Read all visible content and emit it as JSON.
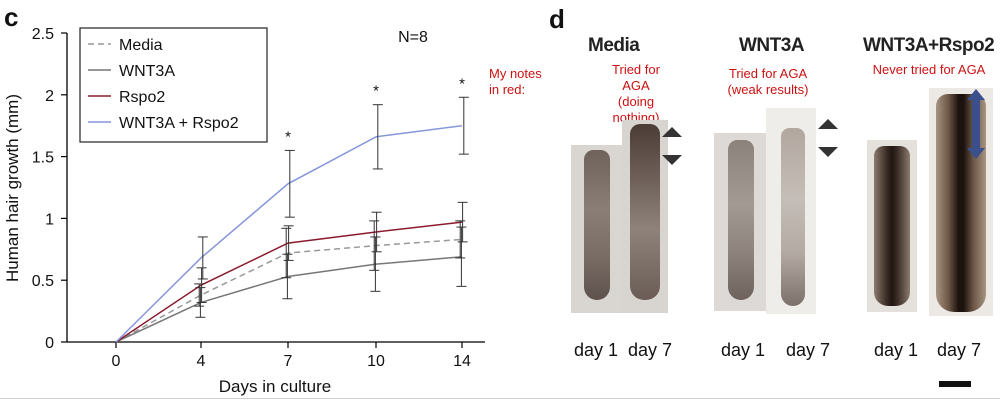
{
  "panel_c": {
    "letter": "c"
  },
  "panel_d": {
    "letter": "d"
  },
  "notes_label": [
    "My notes",
    "in red:"
  ],
  "chart_data": {
    "type": "line",
    "title": "N=8",
    "xlabel": "Days in culture",
    "ylabel": "Human hair growth (mm)",
    "ylim": [
      0,
      2.5
    ],
    "yticks": [
      "0",
      "0.5",
      "1",
      "1.5",
      "2",
      "2.5"
    ],
    "ytick_values": [
      0,
      0.5,
      1,
      1.5,
      2,
      2.5
    ],
    "x_categories": [
      "0",
      "4",
      "7",
      "10",
      "14"
    ],
    "legend_position": "top-left",
    "series": [
      {
        "name": "Media",
        "color": "#999999",
        "dash": true,
        "values": [
          0,
          0.38,
          0.72,
          0.78,
          0.83
        ],
        "err": [
          0,
          0.09,
          0.2,
          0.2,
          0.15
        ]
      },
      {
        "name": "WNT3A",
        "color": "#777777",
        "dash": false,
        "values": [
          0,
          0.32,
          0.53,
          0.63,
          0.69
        ],
        "err": [
          0,
          0.12,
          0.18,
          0.22,
          0.24
        ]
      },
      {
        "name": "Rspo2",
        "color": "#8b1a2e",
        "dash": false,
        "values": [
          0,
          0.46,
          0.8,
          0.89,
          0.97
        ],
        "err": [
          0,
          0.14,
          0.14,
          0.16,
          0.16
        ]
      },
      {
        "name": "WNT3A + Rspo2",
        "color": "#8596db",
        "dash": false,
        "values": [
          0,
          0.68,
          1.28,
          1.66,
          1.75
        ],
        "err": [
          0,
          0.17,
          0.27,
          0.26,
          0.23
        ]
      }
    ],
    "significance": [
      {
        "x_index": 2,
        "label": "*"
      },
      {
        "x_index": 3,
        "label": "*"
      },
      {
        "x_index": 4,
        "label": "*"
      }
    ]
  },
  "conditions": [
    {
      "title": "Media",
      "note": [
        "Tried for AGA",
        "(doing nothing)"
      ],
      "day_labels": [
        "day 1",
        "day 7"
      ]
    },
    {
      "title": "WNT3A",
      "note": [
        "Tried for AGA",
        "(weak results)"
      ],
      "day_labels": [
        "day 1",
        "day 7"
      ]
    },
    {
      "title": "WNT3A+Rspo2",
      "note": [
        "Never tried for AGA"
      ],
      "day_labels": [
        "day 1",
        "day 7"
      ]
    }
  ],
  "colors": {
    "annotation_red": "#cc1111",
    "arrow_blue": "#3b4f8c"
  }
}
